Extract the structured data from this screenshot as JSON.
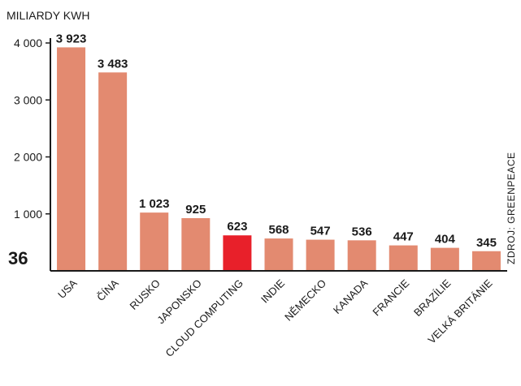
{
  "page_number": "36",
  "chart_data": {
    "type": "bar",
    "ylabel": "MILIARDY KWH",
    "ylim": [
      0,
      4000
    ],
    "yticks": [
      1000,
      2000,
      3000,
      4000
    ],
    "ytick_labels": [
      "1 000",
      "2 000",
      "3 000",
      "4 000"
    ],
    "grid": false,
    "source": "ZDROJ: GREENPEACE",
    "categories": [
      "USA",
      "ČÍNA",
      "RUSKO",
      "JAPONSKO",
      "CLOUD COMPUTING",
      "INDIE",
      "NĚMECKO",
      "KANADA",
      "FRANCIE",
      "BRAZÍLIE",
      "VELKÁ BRITÁNIE"
    ],
    "values": [
      3923,
      3483,
      1023,
      925,
      623,
      568,
      547,
      536,
      447,
      404,
      345
    ],
    "value_labels": [
      "3 923",
      "3 483",
      "1 023",
      "925",
      "623",
      "568",
      "547",
      "536",
      "447",
      "404",
      "345"
    ],
    "colors": {
      "bar": "#e38a70",
      "highlight": "#e8202a",
      "axis": "#1a1a1a"
    },
    "highlight_index": 4
  }
}
